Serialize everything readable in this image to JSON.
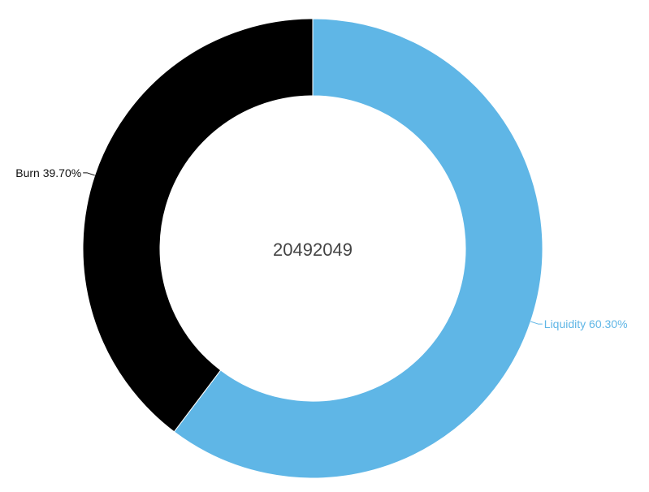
{
  "chart_data": {
    "type": "pie",
    "center_label": "20492049",
    "slices": [
      {
        "name": "Liquidity",
        "percent": 60.3,
        "label": "Liquidity 60.30%",
        "color": "#5fb6e6",
        "label_color": "#5fb6e6"
      },
      {
        "name": "Burn",
        "percent": 39.7,
        "label": "Burn 39.70%",
        "color": "#000000",
        "label_color": "#111111"
      }
    ],
    "donut": true,
    "start_angle_deg": 0,
    "direction": "clockwise"
  }
}
